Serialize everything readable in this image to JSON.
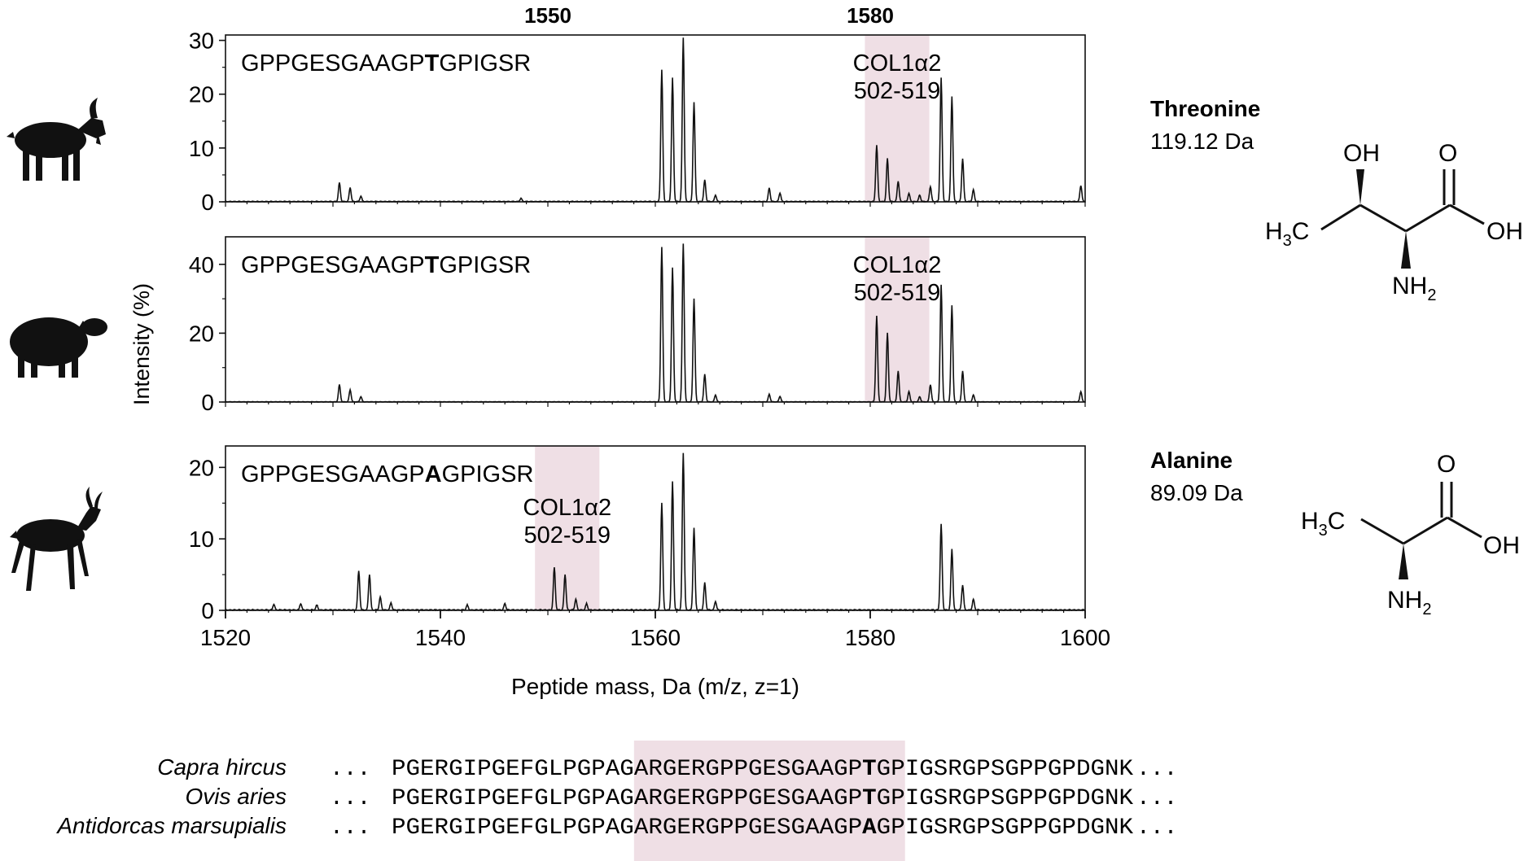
{
  "colors": {
    "highlight": "#efdfe5",
    "trace": "#111111",
    "frame": "#111111"
  },
  "top_marks": [
    "1550",
    "1580"
  ],
  "chart_data": [
    {
      "type": "line",
      "species_icon": "goat-silhouette-icon",
      "peptide_prefix": "GPPGESGAAGP",
      "peptide_residue": "T",
      "peptide_suffix": "GPIGSR",
      "annotation_line1": "COL1α2",
      "annotation_line2": "502-519",
      "highlight_range": [
        1579.5,
        1585.5
      ],
      "xlim": [
        1520,
        1600
      ],
      "ylim": [
        0,
        31
      ],
      "yticks": [
        0,
        10,
        20,
        30
      ],
      "peaks": [
        {
          "x": 1530.6,
          "y": 3.5
        },
        {
          "x": 1531.6,
          "y": 2.6
        },
        {
          "x": 1532.6,
          "y": 1.0
        },
        {
          "x": 1547.5,
          "y": 0.6
        },
        {
          "x": 1560.6,
          "y": 24.5
        },
        {
          "x": 1561.6,
          "y": 23.0
        },
        {
          "x": 1562.6,
          "y": 30.5
        },
        {
          "x": 1563.6,
          "y": 18.5
        },
        {
          "x": 1564.6,
          "y": 4.0
        },
        {
          "x": 1565.6,
          "y": 1.2
        },
        {
          "x": 1570.6,
          "y": 2.5
        },
        {
          "x": 1571.6,
          "y": 1.6
        },
        {
          "x": 1580.6,
          "y": 10.5
        },
        {
          "x": 1581.6,
          "y": 8.0
        },
        {
          "x": 1582.6,
          "y": 3.8
        },
        {
          "x": 1583.6,
          "y": 1.5
        },
        {
          "x": 1584.6,
          "y": 1.2
        },
        {
          "x": 1585.6,
          "y": 2.8
        },
        {
          "x": 1586.6,
          "y": 23.0
        },
        {
          "x": 1587.6,
          "y": 19.5
        },
        {
          "x": 1588.6,
          "y": 8.0
        },
        {
          "x": 1589.6,
          "y": 2.2
        },
        {
          "x": 1599.6,
          "y": 3.0
        }
      ]
    },
    {
      "type": "line",
      "species_icon": "sheep-silhouette-icon",
      "peptide_prefix": "GPPGESGAAGP",
      "peptide_residue": "T",
      "peptide_suffix": "GPIGSR",
      "annotation_line1": "COL1α2",
      "annotation_line2": "502-519",
      "highlight_range": [
        1579.5,
        1585.5
      ],
      "xlim": [
        1520,
        1600
      ],
      "ylim": [
        0,
        48
      ],
      "yticks": [
        0,
        20,
        40
      ],
      "peaks": [
        {
          "x": 1530.6,
          "y": 5.0
        },
        {
          "x": 1531.6,
          "y": 3.5
        },
        {
          "x": 1532.6,
          "y": 1.5
        },
        {
          "x": 1560.6,
          "y": 45.0
        },
        {
          "x": 1561.6,
          "y": 39.0
        },
        {
          "x": 1562.6,
          "y": 46.0
        },
        {
          "x": 1563.6,
          "y": 30.0
        },
        {
          "x": 1564.6,
          "y": 8.0
        },
        {
          "x": 1565.6,
          "y": 2.0
        },
        {
          "x": 1570.6,
          "y": 2.2
        },
        {
          "x": 1571.6,
          "y": 1.6
        },
        {
          "x": 1580.6,
          "y": 25.0
        },
        {
          "x": 1581.6,
          "y": 20.0
        },
        {
          "x": 1582.6,
          "y": 9.0
        },
        {
          "x": 1583.6,
          "y": 3.0
        },
        {
          "x": 1584.6,
          "y": 1.5
        },
        {
          "x": 1585.6,
          "y": 5.0
        },
        {
          "x": 1586.6,
          "y": 34.0
        },
        {
          "x": 1587.6,
          "y": 28.0
        },
        {
          "x": 1588.6,
          "y": 9.0
        },
        {
          "x": 1589.6,
          "y": 2.0
        },
        {
          "x": 1599.6,
          "y": 3.0
        }
      ]
    },
    {
      "type": "line",
      "species_icon": "springbok-silhouette-icon",
      "peptide_prefix": "GPPGESGAAGP",
      "peptide_residue": "A",
      "peptide_suffix": "GPIGSR",
      "annotation_line1": "COL1α2",
      "annotation_line2": "502-519",
      "highlight_range": [
        1548.8,
        1554.8
      ],
      "xlim": [
        1520,
        1600
      ],
      "ylim": [
        0,
        23
      ],
      "yticks": [
        0,
        10,
        20
      ],
      "xticks": [
        1520,
        1540,
        1560,
        1580,
        1600
      ],
      "xlabel": "Peptide mass, Da (m/z, z=1)",
      "peaks": [
        {
          "x": 1524.5,
          "y": 0.8
        },
        {
          "x": 1527.0,
          "y": 0.9
        },
        {
          "x": 1528.5,
          "y": 0.7
        },
        {
          "x": 1532.4,
          "y": 5.5
        },
        {
          "x": 1533.4,
          "y": 5.0
        },
        {
          "x": 1534.4,
          "y": 1.8
        },
        {
          "x": 1535.4,
          "y": 1.0
        },
        {
          "x": 1542.5,
          "y": 0.7
        },
        {
          "x": 1546.0,
          "y": 0.9
        },
        {
          "x": 1550.6,
          "y": 6.0
        },
        {
          "x": 1551.6,
          "y": 5.0
        },
        {
          "x": 1552.6,
          "y": 1.5
        },
        {
          "x": 1553.6,
          "y": 0.9
        },
        {
          "x": 1560.6,
          "y": 15.0
        },
        {
          "x": 1561.6,
          "y": 18.0
        },
        {
          "x": 1562.6,
          "y": 22.0
        },
        {
          "x": 1563.6,
          "y": 11.5
        },
        {
          "x": 1564.6,
          "y": 3.8
        },
        {
          "x": 1565.6,
          "y": 1.2
        },
        {
          "x": 1586.6,
          "y": 12.0
        },
        {
          "x": 1587.6,
          "y": 8.5
        },
        {
          "x": 1588.6,
          "y": 3.5
        },
        {
          "x": 1589.6,
          "y": 1.5
        }
      ]
    }
  ],
  "ylabel": "Intensity (%)",
  "amino_acids": [
    {
      "name": "Threonine",
      "mass": "119.12 Da",
      "structure_icon": "threonine-structure-icon",
      "labels": {
        "oh_top": "OH",
        "o": "O",
        "oh_right": "OH",
        "h3c": "H3C",
        "nh2": "NH2"
      }
    },
    {
      "name": "Alanine",
      "mass": "89.09 Da",
      "structure_icon": "alanine-structure-icon",
      "labels": {
        "o": "O",
        "oh_right": "OH",
        "h3c": "H3C",
        "nh2": "NH2"
      }
    }
  ],
  "alignment": {
    "highlight_span": [
      17,
      35
    ],
    "rows": [
      {
        "species": "Capra hircus",
        "lead": "...",
        "seq": "PGERGIPGEFGLPGPAGARGERGPPGESGAAGPTGPIGSRGPSGPPGPDGNK",
        "trail": "...",
        "bold_index": 33
      },
      {
        "species": "Ovis aries",
        "lead": "...",
        "seq": "PGERGIPGEFGLPGPAGARGERGPPGESGAAGPTGPIGSRGPSGPPGPDGNK",
        "trail": "...",
        "bold_index": 33
      },
      {
        "species": "Antidorcas marsupialis",
        "lead": "...",
        "seq": "PGERGIPGEFGLPGPAGARGERGPPGESGAAGPAGPIGSRGPSGPPGPDGNK",
        "trail": "...",
        "bold_index": 33
      }
    ]
  }
}
